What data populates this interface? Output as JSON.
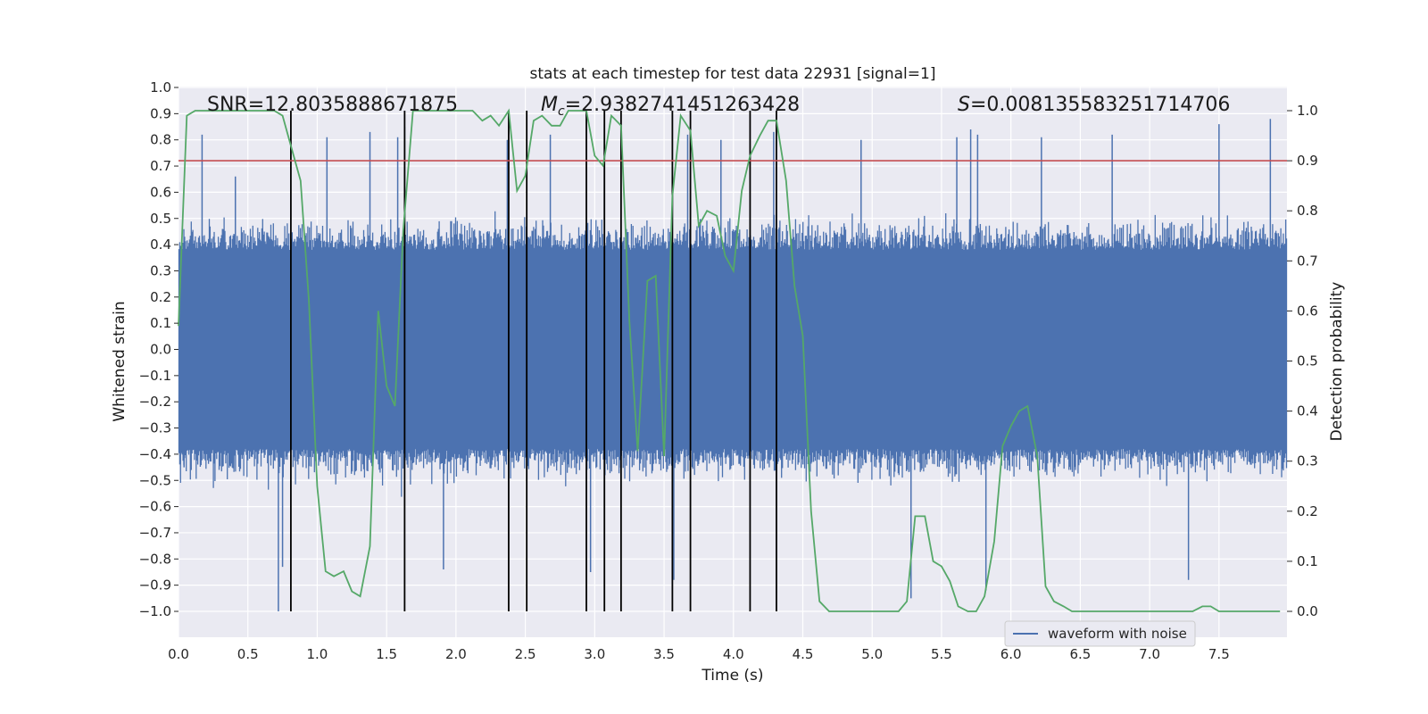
{
  "chart_data": {
    "type": "line",
    "title": "stats at each timestep for test data 22931 [signal=1]",
    "xlabel": "Time (s)",
    "ylabel": "Whitened strain",
    "y2label": "Detection probability",
    "xlim": [
      0.0,
      7.99
    ],
    "ylim": [
      -1.0,
      1.0
    ],
    "y2lim": [
      0.0,
      1.0
    ],
    "x_ticks": [
      0.0,
      0.5,
      1.0,
      1.5,
      2.0,
      2.5,
      3.0,
      3.5,
      4.0,
      4.5,
      5.0,
      5.5,
      6.0,
      6.5,
      7.0,
      7.5
    ],
    "x_tick_labels": [
      "0.0",
      "0.5",
      "1.0",
      "1.5",
      "2.0",
      "2.5",
      "3.0",
      "3.5",
      "4.0",
      "4.5",
      "5.0",
      "5.5",
      "6.0",
      "6.5",
      "7.0",
      "7.5"
    ],
    "y_ticks": [
      1.0,
      0.9,
      0.8,
      0.7,
      0.6,
      0.5,
      0.4,
      0.3,
      0.2,
      0.1,
      0.0,
      -0.1,
      -0.2,
      -0.3,
      -0.4,
      -0.5,
      -0.6,
      -0.7,
      -0.8,
      -0.9,
      -1.0
    ],
    "y_tick_labels": [
      "1.0",
      "0.9",
      "0.8",
      "0.7",
      "0.6",
      "0.5",
      "0.4",
      "0.3",
      "0.2",
      "0.1",
      "0.0",
      "−0.1",
      "−0.2",
      "−0.3",
      "−0.4",
      "−0.5",
      "−0.6",
      "−0.7",
      "−0.8",
      "−0.9",
      "−1.0"
    ],
    "y2_ticks": [
      1.0,
      0.9,
      0.8,
      0.7,
      0.6,
      0.5,
      0.4,
      0.3,
      0.2,
      0.1,
      0.0
    ],
    "y2_tick_labels": [
      "1.0",
      "0.9",
      "0.8",
      "0.7",
      "0.6",
      "0.5",
      "0.4",
      "0.3",
      "0.2",
      "0.1",
      "0.0"
    ],
    "annotations": {
      "snr": "SNR=12.8035888671875",
      "mc_symbol": "M",
      "mc_sub": "c",
      "mc_value": "=2.9382741451263428",
      "s_symbol": "S",
      "s_value": "=0.0081355832517147​06"
    },
    "legend": {
      "label": "waveform with noise",
      "position": "lower-right"
    },
    "threshold": {
      "value": 0.9,
      "axis": "y2",
      "color": "#c44e52"
    },
    "event_markers_x": [
      0.81,
      1.63,
      2.38,
      2.51,
      2.94,
      3.07,
      3.19,
      3.56,
      3.69,
      4.12,
      4.31
    ],
    "series": [
      {
        "name": "waveform with noise",
        "axis": "y",
        "color": "#4c72b0",
        "style": "noise",
        "core_amplitude": 0.38,
        "sample_rate_hz": 256,
        "notable_spikes": [
          {
            "x": 0.04,
            "y": -0.45
          },
          {
            "x": 0.17,
            "y": 0.82
          },
          {
            "x": 0.41,
            "y": 0.66
          },
          {
            "x": 0.72,
            "y": -1.0
          },
          {
            "x": 0.75,
            "y": -0.83
          },
          {
            "x": 1.07,
            "y": 0.81
          },
          {
            "x": 1.38,
            "y": 0.83
          },
          {
            "x": 1.58,
            "y": 0.81
          },
          {
            "x": 1.63,
            "y": 0.85
          },
          {
            "x": 1.91,
            "y": -0.84
          },
          {
            "x": 2.37,
            "y": 0.8
          },
          {
            "x": 2.68,
            "y": 0.82
          },
          {
            "x": 2.97,
            "y": -0.85
          },
          {
            "x": 3.07,
            "y": 0.86
          },
          {
            "x": 3.57,
            "y": -0.88
          },
          {
            "x": 3.67,
            "y": 0.82
          },
          {
            "x": 3.91,
            "y": 0.8
          },
          {
            "x": 4.31,
            "y": -0.93
          },
          {
            "x": 4.29,
            "y": 0.83
          },
          {
            "x": 5.28,
            "y": -0.95
          },
          {
            "x": 5.61,
            "y": 0.81
          },
          {
            "x": 5.71,
            "y": 0.84
          },
          {
            "x": 5.76,
            "y": 0.82
          },
          {
            "x": 5.82,
            "y": -0.92
          },
          {
            "x": 6.22,
            "y": 0.81
          },
          {
            "x": 7.28,
            "y": -0.88
          },
          {
            "x": 7.87,
            "y": 0.88
          },
          {
            "x": 7.5,
            "y": 0.86
          },
          {
            "x": 6.73,
            "y": 0.82
          },
          {
            "x": 4.92,
            "y": 0.8
          }
        ]
      },
      {
        "name": "detection probability",
        "axis": "y2",
        "color": "#55a868",
        "x": [
          0.0,
          0.06,
          0.12,
          0.19,
          0.25,
          0.31,
          0.38,
          0.44,
          0.5,
          0.56,
          0.62,
          0.69,
          0.75,
          0.81,
          0.88,
          0.94,
          1.0,
          1.06,
          1.12,
          1.19,
          1.25,
          1.31,
          1.38,
          1.44,
          1.5,
          1.56,
          1.62,
          1.69,
          1.75,
          1.81,
          1.88,
          1.94,
          2.0,
          2.06,
          2.12,
          2.19,
          2.25,
          2.31,
          2.38,
          2.44,
          2.5,
          2.56,
          2.62,
          2.69,
          2.75,
          2.81,
          2.88,
          2.94,
          3.0,
          3.06,
          3.12,
          3.19,
          3.25,
          3.31,
          3.38,
          3.44,
          3.5,
          3.56,
          3.62,
          3.69,
          3.75,
          3.81,
          3.88,
          3.94,
          4.0,
          4.06,
          4.12,
          4.19,
          4.25,
          4.31,
          4.38,
          4.44,
          4.5,
          4.56,
          4.62,
          4.69,
          4.75,
          4.81,
          4.88,
          4.94,
          5.0,
          5.06,
          5.12,
          5.19,
          5.25,
          5.31,
          5.38,
          5.44,
          5.5,
          5.56,
          5.62,
          5.69,
          5.75,
          5.81,
          5.88,
          5.94,
          6.0,
          6.06,
          6.12,
          6.19,
          6.25,
          6.31,
          6.38,
          6.44,
          6.5,
          6.56,
          6.62,
          6.69,
          6.75,
          6.81,
          6.88,
          6.94,
          7.0,
          7.06,
          7.12,
          7.19,
          7.25,
          7.31,
          7.38,
          7.44,
          7.5,
          7.56,
          7.62,
          7.69,
          7.75,
          7.81,
          7.88,
          7.94
        ],
        "values": [
          0.57,
          0.99,
          1.0,
          1.0,
          1.0,
          1.0,
          1.0,
          1.0,
          1.0,
          1.0,
          1.0,
          1.0,
          0.99,
          0.93,
          0.86,
          0.62,
          0.25,
          0.08,
          0.07,
          0.08,
          0.04,
          0.03,
          0.13,
          0.6,
          0.45,
          0.41,
          0.76,
          1.0,
          1.0,
          1.0,
          1.0,
          1.0,
          1.0,
          1.0,
          1.0,
          0.98,
          0.99,
          0.97,
          1.0,
          0.84,
          0.87,
          0.98,
          0.99,
          0.97,
          0.97,
          1.0,
          1.0,
          1.0,
          0.91,
          0.89,
          0.99,
          0.97,
          0.58,
          0.32,
          0.66,
          0.67,
          0.31,
          0.83,
          0.99,
          0.96,
          0.77,
          0.8,
          0.79,
          0.71,
          0.68,
          0.84,
          0.91,
          0.95,
          0.98,
          0.98,
          0.86,
          0.65,
          0.55,
          0.2,
          0.02,
          0.0,
          0.0,
          0.0,
          0.0,
          0.0,
          0.0,
          0.0,
          0.0,
          0.0,
          0.02,
          0.19,
          0.19,
          0.1,
          0.09,
          0.06,
          0.01,
          0.0,
          0.0,
          0.03,
          0.14,
          0.33,
          0.37,
          0.4,
          0.41,
          0.31,
          0.05,
          0.02,
          0.01,
          0.0,
          0.0,
          0.0,
          0.0,
          0.0,
          0.0,
          0.0,
          0.0,
          0.0,
          0.0,
          0.0,
          0.0,
          0.0,
          0.0,
          0.0,
          0.01,
          0.01,
          0.0,
          0.0,
          0.0,
          0.0,
          0.0,
          0.0,
          0.0,
          0.0
        ]
      }
    ]
  }
}
